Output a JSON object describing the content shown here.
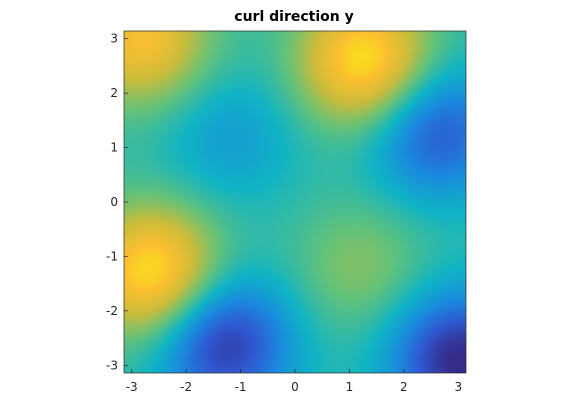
{
  "chart_data": {
    "type": "heatmap",
    "title": "curl direction y",
    "xlabel": "",
    "ylabel": "",
    "xlim": [
      -3.14159,
      3.14159
    ],
    "ylim": [
      -3.14159,
      3.14159
    ],
    "x_ticks": [
      -3,
      -2,
      -1,
      0,
      1,
      2,
      3
    ],
    "y_ticks": [
      -3,
      -2,
      -1,
      0,
      1,
      2,
      3
    ],
    "x_tick_labels": [
      "-3",
      "-2",
      "-1",
      "0",
      "1",
      "2",
      "3"
    ],
    "y_tick_labels": [
      "-3",
      "-2",
      "-1",
      "0",
      "1",
      "2",
      "3"
    ],
    "colormap": "parula",
    "colormap_stops": [
      "#352a87",
      "#2f58d1",
      "#1a8ade",
      "#10b4c5",
      "#63c27a",
      "#c9bc3c",
      "#fbbf30",
      "#f9fb0e"
    ],
    "grid": false,
    "colorbar": false,
    "features": [
      {
        "x": -2.8,
        "y": 3.0,
        "value": 0.85,
        "kind": "high"
      },
      {
        "x": 1.3,
        "y": 2.6,
        "value": 0.95,
        "kind": "high"
      },
      {
        "x": -2.6,
        "y": -1.3,
        "value": 0.95,
        "kind": "high"
      },
      {
        "x": 2.6,
        "y": 1.3,
        "value": 0.15,
        "kind": "low"
      },
      {
        "x": -1.3,
        "y": -2.6,
        "value": 0.05,
        "kind": "low"
      },
      {
        "x": 3.0,
        "y": -2.9,
        "value": 0.0,
        "kind": "low"
      },
      {
        "x": -1.2,
        "y": 1.2,
        "value": 0.35,
        "kind": "low"
      },
      {
        "x": 1.2,
        "y": -1.2,
        "value": 0.62,
        "kind": "high"
      }
    ]
  }
}
